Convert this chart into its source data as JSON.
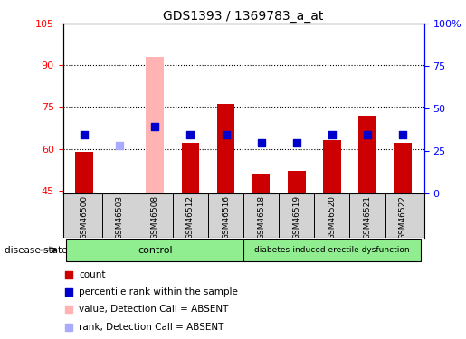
{
  "title": "GDS1393 / 1369783_a_at",
  "samples": [
    "GSM46500",
    "GSM46503",
    "GSM46508",
    "GSM46512",
    "GSM46516",
    "GSM46518",
    "GSM46519",
    "GSM46520",
    "GSM46521",
    "GSM46522"
  ],
  "bar_values": [
    59,
    44,
    44,
    62,
    76,
    51,
    52,
    63,
    72,
    62
  ],
  "bar_bottom": 44,
  "rank_values": [
    65,
    61,
    68,
    65,
    65,
    62,
    62,
    65,
    65,
    65
  ],
  "absent_bar_value": 93,
  "absent_rank_value": 68,
  "absent_bar_index": 2,
  "absent_rank_index": 1,
  "bar_color": "#cc0000",
  "absent_bar_color": "#ffb3b3",
  "rank_color": "#0000cc",
  "absent_rank_color": "#aaaaff",
  "ylim_left": [
    44,
    105
  ],
  "ylim_right": [
    0,
    100
  ],
  "yticks_left": [
    45,
    60,
    75,
    90,
    105
  ],
  "ytick_labels_left": [
    "45",
    "60",
    "75",
    "90",
    "105"
  ],
  "yticks_right": [
    0,
    25,
    50,
    75,
    100
  ],
  "ytick_labels_right": [
    "0",
    "25",
    "50",
    "75",
    "100%"
  ],
  "control_count": 5,
  "condition_count": 5,
  "control_label": "control",
  "condition_label": "diabetes-induced erectile dysfunction",
  "disease_state_label": "disease state",
  "legend_items": [
    {
      "label": "count",
      "color": "#cc0000"
    },
    {
      "label": "percentile rank within the sample",
      "color": "#0000cc"
    },
    {
      "label": "value, Detection Call = ABSENT",
      "color": "#ffb3b3"
    },
    {
      "label": "rank, Detection Call = ABSENT",
      "color": "#aaaaff"
    }
  ],
  "bar_width": 0.5,
  "rank_square_size": 40,
  "dotted_yticks": [
    60,
    75,
    90
  ],
  "label_bg_color": "#d3d3d3",
  "green_color": "#90ee90"
}
